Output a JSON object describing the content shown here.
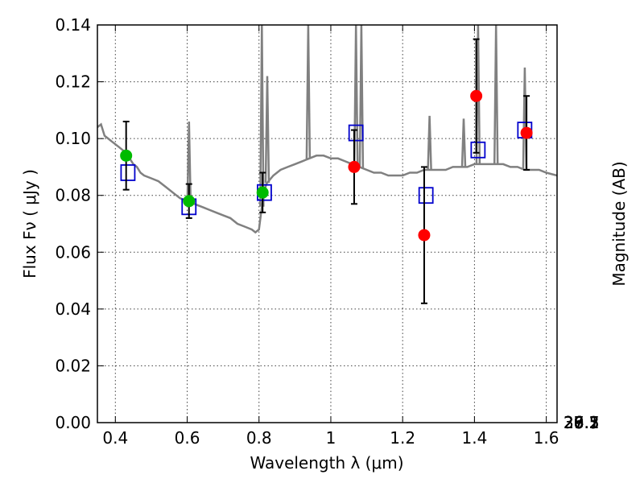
{
  "chart_data": {
    "type": "scatter",
    "xlabel": "Wavelength  λ (μm)",
    "ylabel": "Flux  Fν  ( μJy )",
    "y2label": "Magnitude (AB)",
    "xlim": [
      0.35,
      1.63
    ],
    "ylim": [
      0.0,
      0.14
    ],
    "x_ticks": [
      0.4,
      0.6,
      0.8,
      1,
      1.2,
      1.4,
      1.6
    ],
    "x_tick_labels": [
      "0.4",
      "0.6",
      "0.8",
      "1",
      "1.2",
      "1.4",
      "1.6"
    ],
    "y_ticks": [
      0.0,
      0.02,
      0.04,
      0.06,
      0.08,
      0.1,
      0.12,
      0.14
    ],
    "y_tick_labels": [
      "0.00",
      "0.02",
      "0.04",
      "0.06",
      "0.08",
      "0.10",
      "0.12",
      "0.14"
    ],
    "y2_ticks": [
      26.1,
      26.3,
      26.5,
      26.7,
      27,
      27.2,
      27.5,
      28,
      28.5,
      29,
      30
    ],
    "y2_tick_labels": [
      "26.1",
      "26.3",
      "26.5",
      "26.7",
      "27",
      "27.2",
      "27.5",
      "28",
      "28.5",
      "29",
      "30"
    ],
    "ab_zero_point_ujy": 3630.78,
    "grid": true,
    "colors": {
      "spectrum": "#808080",
      "observed_green": "#00bb00",
      "observed_red": "#ff0000",
      "model_box": "#0000cc",
      "errorbar": "#000000"
    },
    "series": [
      {
        "kind": "model_spectrum_line",
        "points": [
          [
            0.35,
            0.104
          ],
          [
            0.36,
            0.105
          ],
          [
            0.37,
            0.101
          ],
          [
            0.38,
            0.1
          ],
          [
            0.39,
            0.099
          ],
          [
            0.4,
            0.098
          ],
          [
            0.41,
            0.097
          ],
          [
            0.42,
            0.096
          ],
          [
            0.43,
            0.095
          ],
          [
            0.44,
            0.093
          ],
          [
            0.45,
            0.091
          ],
          [
            0.46,
            0.09
          ],
          [
            0.47,
            0.088
          ],
          [
            0.48,
            0.087
          ],
          [
            0.5,
            0.086
          ],
          [
            0.52,
            0.085
          ],
          [
            0.54,
            0.083
          ],
          [
            0.56,
            0.081
          ],
          [
            0.58,
            0.079
          ],
          [
            0.6,
            0.078
          ],
          [
            0.62,
            0.077
          ],
          [
            0.64,
            0.076
          ],
          [
            0.66,
            0.075
          ],
          [
            0.68,
            0.074
          ],
          [
            0.7,
            0.073
          ],
          [
            0.72,
            0.072
          ],
          [
            0.74,
            0.07
          ],
          [
            0.76,
            0.069
          ],
          [
            0.78,
            0.068
          ],
          [
            0.79,
            0.067
          ],
          [
            0.8,
            0.068
          ],
          [
            0.81,
            0.078
          ],
          [
            0.82,
            0.084
          ],
          [
            0.84,
            0.087
          ],
          [
            0.86,
            0.089
          ],
          [
            0.88,
            0.09
          ],
          [
            0.9,
            0.091
          ],
          [
            0.92,
            0.092
          ],
          [
            0.94,
            0.093
          ],
          [
            0.96,
            0.094
          ],
          [
            0.98,
            0.094
          ],
          [
            1.0,
            0.093
          ],
          [
            1.02,
            0.093
          ],
          [
            1.04,
            0.092
          ],
          [
            1.06,
            0.091
          ],
          [
            1.08,
            0.09
          ],
          [
            1.1,
            0.089
          ],
          [
            1.12,
            0.088
          ],
          [
            1.14,
            0.088
          ],
          [
            1.16,
            0.087
          ],
          [
            1.18,
            0.087
          ],
          [
            1.2,
            0.087
          ],
          [
            1.22,
            0.088
          ],
          [
            1.24,
            0.088
          ],
          [
            1.26,
            0.089
          ],
          [
            1.28,
            0.089
          ],
          [
            1.3,
            0.089
          ],
          [
            1.32,
            0.089
          ],
          [
            1.34,
            0.09
          ],
          [
            1.36,
            0.09
          ],
          [
            1.38,
            0.09
          ],
          [
            1.4,
            0.091
          ],
          [
            1.42,
            0.091
          ],
          [
            1.44,
            0.091
          ],
          [
            1.46,
            0.091
          ],
          [
            1.48,
            0.091
          ],
          [
            1.5,
            0.09
          ],
          [
            1.52,
            0.09
          ],
          [
            1.54,
            0.089
          ],
          [
            1.56,
            0.089
          ],
          [
            1.58,
            0.089
          ],
          [
            1.6,
            0.088
          ],
          [
            1.63,
            0.087
          ]
        ],
        "emission_lines": [
          [
            0.605,
            0.106
          ],
          [
            0.808,
            0.14
          ],
          [
            0.823,
            0.122
          ],
          [
            0.937,
            0.14
          ],
          [
            1.07,
            0.14
          ],
          [
            1.085,
            0.14
          ],
          [
            1.275,
            0.108
          ],
          [
            1.37,
            0.107
          ],
          [
            1.41,
            0.14
          ],
          [
            1.46,
            0.14
          ],
          [
            1.54,
            0.125
          ]
        ]
      },
      {
        "kind": "observed_points_green",
        "x": [
          0.43,
          0.605,
          0.81
        ],
        "y": [
          0.094,
          0.078,
          0.081
        ],
        "err": [
          0.012,
          0.006,
          0.007
        ]
      },
      {
        "kind": "observed_points_red",
        "x": [
          1.065,
          1.26,
          1.405,
          1.545
        ],
        "y": [
          0.09,
          0.066,
          0.115,
          0.102
        ],
        "err": [
          0.013,
          0.024,
          0.02,
          0.013
        ]
      },
      {
        "kind": "model_photometry_boxes",
        "x": [
          0.435,
          0.605,
          0.815,
          1.07,
          1.265,
          1.41,
          1.54
        ],
        "y": [
          0.088,
          0.076,
          0.081,
          0.102,
          0.08,
          0.096,
          0.103
        ]
      }
    ]
  }
}
